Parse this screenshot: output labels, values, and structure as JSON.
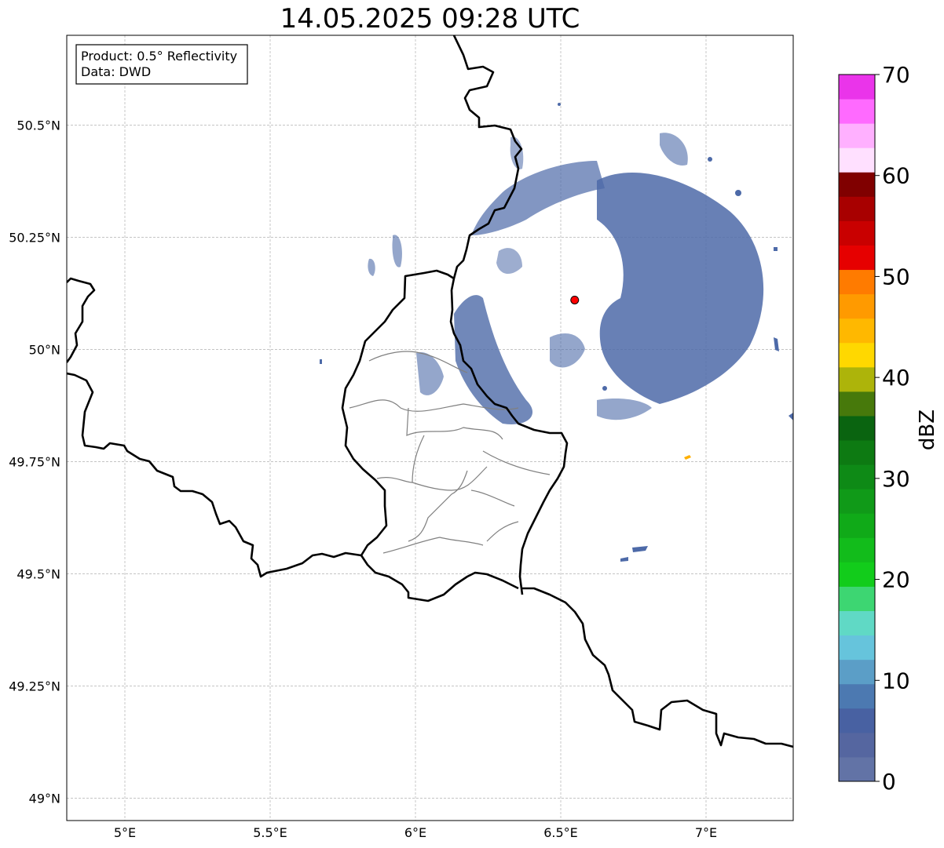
{
  "title": "14.05.2025 09:28 UTC",
  "info_box": {
    "product": "Product: 0.5° Reflectivity",
    "data": "Data: DWD"
  },
  "map": {
    "lon_range": [
      4.8,
      7.3
    ],
    "lat_range": [
      48.95,
      50.7
    ],
    "x_ticks": [
      {
        "value": 5.0,
        "label": "5°E"
      },
      {
        "value": 5.5,
        "label": "5.5°E"
      },
      {
        "value": 6.0,
        "label": "6°E"
      },
      {
        "value": 6.5,
        "label": "6.5°E"
      },
      {
        "value": 7.0,
        "label": "7°E"
      }
    ],
    "y_ticks": [
      {
        "value": 50.5,
        "label": "50.5°N"
      },
      {
        "value": 50.25,
        "label": "50.25°N"
      },
      {
        "value": 50.0,
        "label": "50°N"
      },
      {
        "value": 49.75,
        "label": "49.75°N"
      },
      {
        "value": 49.5,
        "label": "49.5°N"
      },
      {
        "value": 49.25,
        "label": "49.25°N"
      },
      {
        "value": 49.0,
        "label": "49°N"
      }
    ],
    "gridlines": true,
    "radar_site": {
      "lon": 6.548,
      "lat": 50.11,
      "color": "#ff0000"
    },
    "echo_color": "#4d6aa8",
    "weak_cells_color": "#ffb000"
  },
  "colorbar": {
    "label": "dBZ",
    "min": 0,
    "max": 70,
    "step": 2.5,
    "ticks": [
      {
        "value": 0,
        "label": "0"
      },
      {
        "value": 10,
        "label": "10"
      },
      {
        "value": 20,
        "label": "20"
      },
      {
        "value": 30,
        "label": "30"
      },
      {
        "value": 40,
        "label": "40"
      },
      {
        "value": 50,
        "label": "50"
      },
      {
        "value": 60,
        "label": "60"
      },
      {
        "value": 70,
        "label": "70"
      }
    ],
    "colors": [
      "#6273a6",
      "#5566a0",
      "#4861a2",
      "#4c79b1",
      "#5b9ec7",
      "#66c4dc",
      "#60d9c5",
      "#3dd672",
      "#12cc1b",
      "#12bc1b",
      "#10aa18",
      "#109a18",
      "#0e8a16",
      "#0d7a12",
      "#0a6410",
      "#47790b",
      "#adb40a",
      "#ffd800",
      "#ffb800",
      "#ff9a00",
      "#ff7b00",
      "#e60000",
      "#c90000",
      "#a80000",
      "#800000",
      "#ffe0ff",
      "#ffb0ff",
      "#ff6aff",
      "#ea34ea"
    ]
  }
}
